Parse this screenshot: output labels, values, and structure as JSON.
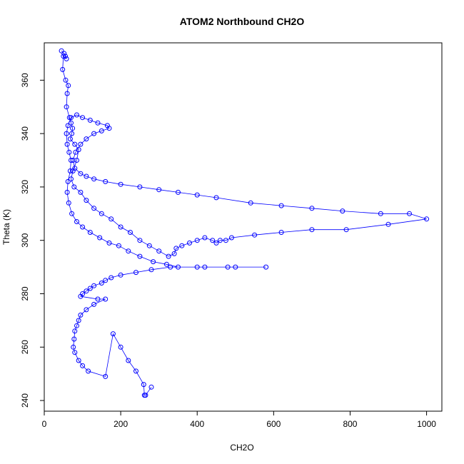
{
  "chart_data": {
    "type": "line",
    "title": "ATOM2 Northbound CH2O",
    "xlabel": "CH2O",
    "ylabel": "Theta (K)",
    "xlim": [
      0,
      1040
    ],
    "ylim": [
      236,
      374
    ],
    "x_ticks": [
      0,
      200,
      400,
      600,
      800,
      1000
    ],
    "y_ticks": [
      240,
      260,
      280,
      300,
      320,
      340,
      360
    ],
    "grid": false,
    "legend": "none",
    "marker": "open-circle",
    "color": "#0000ff",
    "series": [
      {
        "points": [
          [
            45,
            371
          ],
          [
            52,
            370
          ],
          [
            55,
            369
          ],
          [
            58,
            368
          ],
          [
            50,
            369
          ],
          [
            48,
            364
          ],
          [
            56,
            360
          ],
          [
            63,
            358
          ],
          [
            60,
            355
          ],
          [
            58,
            350
          ],
          [
            66,
            346
          ],
          [
            70,
            344
          ],
          [
            74,
            342
          ],
          [
            72,
            340
          ],
          [
            68,
            338
          ],
          [
            80,
            336
          ],
          [
            90,
            334
          ],
          [
            85,
            330
          ],
          [
            75,
            326
          ],
          [
            70,
            323
          ],
          [
            78,
            320
          ],
          [
            95,
            318
          ],
          [
            110,
            315
          ],
          [
            130,
            312
          ],
          [
            150,
            310
          ],
          [
            175,
            308
          ],
          [
            200,
            305
          ],
          [
            225,
            303
          ],
          [
            250,
            300
          ],
          [
            275,
            298
          ],
          [
            300,
            296
          ],
          [
            325,
            294
          ],
          [
            340,
            295
          ],
          [
            345,
            297
          ],
          [
            360,
            298
          ],
          [
            380,
            299
          ],
          [
            400,
            300
          ],
          [
            420,
            301
          ],
          [
            440,
            300
          ],
          [
            450,
            299
          ],
          [
            460,
            300
          ],
          [
            475,
            300
          ],
          [
            490,
            301
          ],
          [
            550,
            302
          ],
          [
            620,
            303
          ],
          [
            700,
            304
          ],
          [
            790,
            304
          ],
          [
            900,
            306
          ],
          [
            1000,
            308
          ],
          [
            955,
            310
          ],
          [
            880,
            310
          ],
          [
            780,
            311
          ],
          [
            700,
            312
          ],
          [
            620,
            313
          ],
          [
            540,
            314
          ],
          [
            450,
            316
          ],
          [
            400,
            317
          ],
          [
            350,
            318
          ],
          [
            300,
            319
          ],
          [
            250,
            320
          ],
          [
            200,
            321
          ],
          [
            160,
            322
          ],
          [
            130,
            323
          ],
          [
            110,
            324
          ],
          [
            95,
            325
          ],
          [
            80,
            327
          ],
          [
            75,
            330
          ],
          [
            82,
            333
          ],
          [
            95,
            336
          ],
          [
            110,
            338
          ],
          [
            130,
            340
          ],
          [
            150,
            341
          ],
          [
            170,
            342
          ],
          [
            165,
            343
          ],
          [
            140,
            344
          ],
          [
            120,
            345
          ],
          [
            100,
            346
          ],
          [
            85,
            347
          ],
          [
            70,
            346
          ],
          [
            62,
            343
          ],
          [
            58,
            340
          ],
          [
            60,
            336
          ],
          [
            65,
            333
          ],
          [
            70,
            330
          ],
          [
            68,
            326
          ],
          [
            62,
            322
          ],
          [
            60,
            318
          ],
          [
            64,
            314
          ],
          [
            72,
            310
          ],
          [
            85,
            307
          ],
          [
            100,
            305
          ],
          [
            120,
            303
          ],
          [
            145,
            301
          ],
          [
            170,
            299
          ],
          [
            195,
            298
          ],
          [
            220,
            296
          ],
          [
            250,
            294
          ],
          [
            285,
            292
          ],
          [
            320,
            291
          ],
          [
            350,
            290
          ],
          [
            420,
            290
          ],
          [
            480,
            290
          ],
          [
            580,
            290
          ],
          [
            500,
            290
          ],
          [
            400,
            290
          ],
          [
            330,
            290
          ],
          [
            280,
            289
          ],
          [
            240,
            288
          ],
          [
            200,
            287
          ],
          [
            175,
            286
          ],
          [
            160,
            285
          ],
          [
            150,
            284
          ],
          [
            130,
            283
          ],
          [
            120,
            282
          ],
          [
            110,
            281
          ],
          [
            100,
            280
          ],
          [
            95,
            279
          ],
          [
            140,
            278
          ],
          [
            160,
            278
          ],
          [
            130,
            276
          ],
          [
            110,
            274
          ],
          [
            95,
            272
          ],
          [
            90,
            270
          ],
          [
            85,
            268
          ],
          [
            80,
            266
          ],
          [
            78,
            263
          ],
          [
            76,
            260
          ],
          [
            80,
            258
          ],
          [
            90,
            255
          ],
          [
            100,
            253
          ],
          [
            115,
            251
          ],
          [
            160,
            249
          ],
          [
            180,
            265
          ],
          [
            200,
            260
          ],
          [
            220,
            255
          ],
          [
            240,
            251
          ],
          [
            260,
            246
          ],
          [
            262,
            242
          ],
          [
            265,
            242
          ],
          [
            280,
            245
          ]
        ]
      }
    ]
  }
}
